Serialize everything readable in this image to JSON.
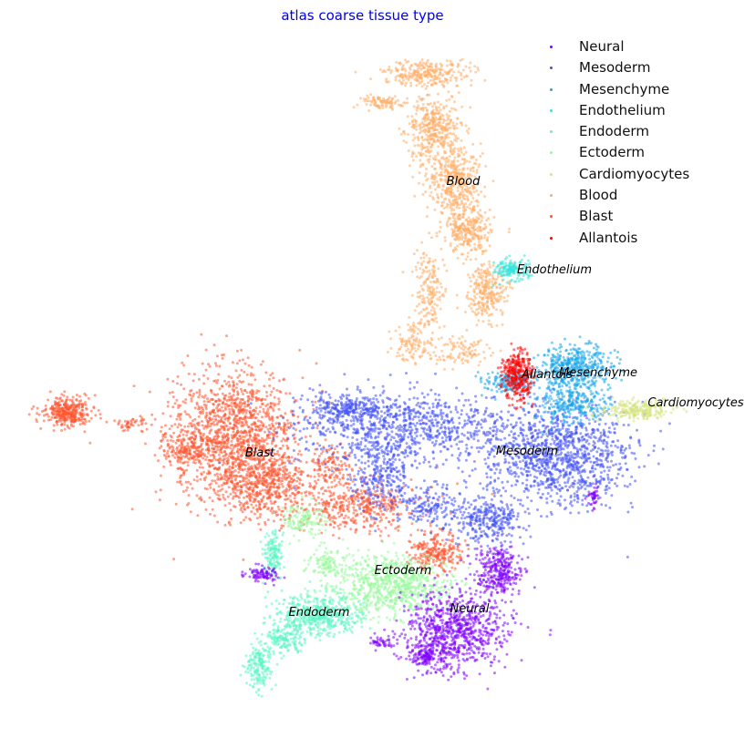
{
  "chart_data": {
    "type": "scatter",
    "title": "atlas coarse tissue type",
    "xlabel": "",
    "ylabel": "",
    "axes_visible": false,
    "grid": false,
    "legend_placement": "top-right",
    "series": [
      {
        "name": "Neural",
        "color": "#8000ff"
      },
      {
        "name": "Mesoderm",
        "color": "#4050f8"
      },
      {
        "name": "Mesenchyme",
        "color": "#18a6ea"
      },
      {
        "name": "Endothelium",
        "color": "#34e6dc"
      },
      {
        "name": "Endoderm",
        "color": "#5cf5c4"
      },
      {
        "name": "Ectoderm",
        "color": "#97fa9a"
      },
      {
        "name": "Cardiomyocytes",
        "color": "#d5e47e"
      },
      {
        "name": "Blood",
        "color": "#ffad66"
      },
      {
        "name": "Blast",
        "color": "#ff5530"
      },
      {
        "name": "Allantois",
        "color": "#ff0000"
      }
    ],
    "cluster_labels": [
      "Blood",
      "Endothelium",
      "Allantois",
      "Mesenchyme",
      "Cardiomyocytes",
      "Blast",
      "Mesoderm",
      "Ectoderm",
      "Neural",
      "Endoderm"
    ]
  }
}
